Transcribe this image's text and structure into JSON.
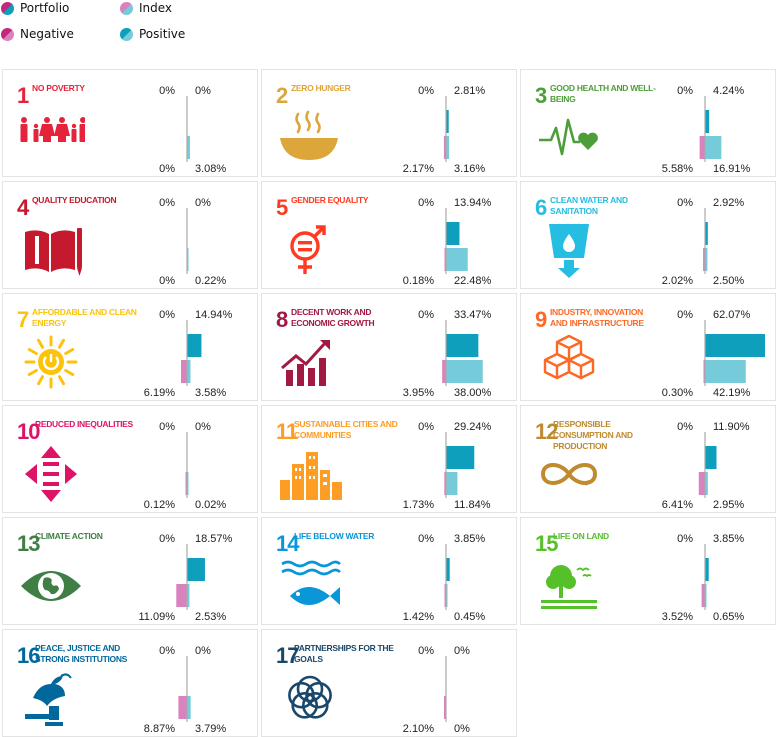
{
  "legend": {
    "portfolio": "Portfolio",
    "index": "Index",
    "negative": "Negative",
    "positive": "Positive"
  },
  "colors": {
    "portfolio_positive": "#0e9fbd",
    "index_positive": "#76cbdb",
    "portfolio_negative": "#c2297e",
    "index_negative": "#d982bd",
    "axis": "#aaaaaa"
  },
  "chart_data": {
    "type": "bar",
    "description_scale_max_percent": 62.07,
    "series": [
      {
        "name": "Portfolio"
      },
      {
        "name": "Index"
      }
    ],
    "goals": [
      {
        "num": "1",
        "title": "No poverty",
        "color": "#e5243b",
        "icon": "people-icon",
        "portfolio": {
          "negative": "0%",
          "positive": "0%",
          "neg": 0,
          "pos": 0
        },
        "index": {
          "negative": "0%",
          "positive": "3.08%",
          "neg": 0,
          "pos": 3.08
        }
      },
      {
        "num": "2",
        "title": "Zero hunger",
        "color": "#dda63a",
        "icon": "bowl-icon",
        "portfolio": {
          "negative": "0%",
          "positive": "2.81%",
          "neg": 0,
          "pos": 2.81
        },
        "index": {
          "negative": "2.17%",
          "positive": "3.16%",
          "neg": 2.17,
          "pos": 3.16
        }
      },
      {
        "num": "3",
        "title": "Good health and well-being",
        "color": "#4c9f38",
        "icon": "heartbeat-icon",
        "portfolio": {
          "negative": "0%",
          "positive": "4.24%",
          "neg": 0,
          "pos": 4.24
        },
        "index": {
          "negative": "5.58%",
          "positive": "16.91%",
          "neg": 5.58,
          "pos": 16.91
        }
      },
      {
        "num": "4",
        "title": "Quality education",
        "color": "#c5192d",
        "icon": "book-icon",
        "portfolio": {
          "negative": "0%",
          "positive": "0%",
          "neg": 0,
          "pos": 0
        },
        "index": {
          "negative": "0%",
          "positive": "0.22%",
          "neg": 0,
          "pos": 0.22
        }
      },
      {
        "num": "5",
        "title": "Gender equality",
        "color": "#ff3a21",
        "icon": "gender-icon",
        "portfolio": {
          "negative": "0%",
          "positive": "13.94%",
          "neg": 0,
          "pos": 13.94
        },
        "index": {
          "negative": "0.18%",
          "positive": "22.48%",
          "neg": 0.18,
          "pos": 22.48
        }
      },
      {
        "num": "6",
        "title": "Clean water and sanitation",
        "color": "#26bde2",
        "icon": "water-glass-icon",
        "portfolio": {
          "negative": "0%",
          "positive": "2.92%",
          "neg": 0,
          "pos": 2.92
        },
        "index": {
          "negative": "2.02%",
          "positive": "2.50%",
          "neg": 2.02,
          "pos": 2.5
        }
      },
      {
        "num": "7",
        "title": "Affordable and clean energy",
        "color": "#fcc30b",
        "icon": "sun-power-icon",
        "portfolio": {
          "negative": "0%",
          "positive": "14.94%",
          "neg": 0,
          "pos": 14.94
        },
        "index": {
          "negative": "6.19%",
          "positive": "3.58%",
          "neg": 6.19,
          "pos": 3.58
        }
      },
      {
        "num": "8",
        "title": "Decent work and economic growth",
        "color": "#a21942",
        "icon": "growth-chart-icon",
        "portfolio": {
          "negative": "0%",
          "positive": "33.47%",
          "neg": 0,
          "pos": 33.47
        },
        "index": {
          "negative": "3.95%",
          "positive": "38.00%",
          "neg": 3.95,
          "pos": 38.0
        }
      },
      {
        "num": "9",
        "title": "Industry, innovation and infrastructure",
        "color": "#fd6925",
        "icon": "cubes-icon",
        "portfolio": {
          "negative": "0%",
          "positive": "62.07%",
          "neg": 0,
          "pos": 62.07
        },
        "index": {
          "negative": "0.30%",
          "positive": "42.19%",
          "neg": 0.3,
          "pos": 42.19
        }
      },
      {
        "num": "10",
        "title": "Reduced inequalities",
        "color": "#dd1367",
        "icon": "equality-arrows-icon",
        "portfolio": {
          "negative": "0%",
          "positive": "0%",
          "neg": 0,
          "pos": 0
        },
        "index": {
          "negative": "0.12%",
          "positive": "0.02%",
          "neg": 0.12,
          "pos": 0.02
        }
      },
      {
        "num": "11",
        "title": "Sustainable cities and communities",
        "color": "#fd9d24",
        "icon": "city-icon",
        "portfolio": {
          "negative": "0%",
          "positive": "29.24%",
          "neg": 0,
          "pos": 29.24
        },
        "index": {
          "negative": "1.73%",
          "positive": "11.84%",
          "neg": 1.73,
          "pos": 11.84
        }
      },
      {
        "num": "12",
        "title": "Responsible consumption and production",
        "color": "#bf8b2e",
        "icon": "infinity-icon",
        "portfolio": {
          "negative": "0%",
          "positive": "11.90%",
          "neg": 0,
          "pos": 11.9
        },
        "index": {
          "negative": "6.41%",
          "positive": "2.95%",
          "neg": 6.41,
          "pos": 2.95
        }
      },
      {
        "num": "13",
        "title": "Climate action",
        "color": "#3f7e44",
        "icon": "eye-globe-icon",
        "portfolio": {
          "negative": "0%",
          "positive": "18.57%",
          "neg": 0,
          "pos": 18.57
        },
        "index": {
          "negative": "11.09%",
          "positive": "2.53%",
          "neg": 11.09,
          "pos": 2.53
        }
      },
      {
        "num": "14",
        "title": "Life below water",
        "color": "#0a97d9",
        "icon": "fish-icon",
        "portfolio": {
          "negative": "0%",
          "positive": "3.85%",
          "neg": 0,
          "pos": 3.85
        },
        "index": {
          "negative": "1.42%",
          "positive": "0.45%",
          "neg": 1.42,
          "pos": 0.45
        }
      },
      {
        "num": "15",
        "title": "Life on land",
        "color": "#56c02b",
        "icon": "tree-icon",
        "portfolio": {
          "negative": "0%",
          "positive": "3.85%",
          "neg": 0,
          "pos": 3.85
        },
        "index": {
          "negative": "3.52%",
          "positive": "0.65%",
          "neg": 3.52,
          "pos": 0.65
        }
      },
      {
        "num": "16",
        "title": "Peace, justice and strong institutions",
        "color": "#00689d",
        "icon": "dove-gavel-icon",
        "portfolio": {
          "negative": "0%",
          "positive": "0%",
          "neg": 0,
          "pos": 0
        },
        "index": {
          "negative": "8.87%",
          "positive": "3.79%",
          "neg": 8.87,
          "pos": 3.79
        }
      },
      {
        "num": "17",
        "title": "Partnerships for the goals",
        "color": "#19486a",
        "icon": "rings-icon",
        "portfolio": {
          "negative": "0%",
          "positive": "0%",
          "neg": 0,
          "pos": 0
        },
        "index": {
          "negative": "2.10%",
          "positive": "0%",
          "neg": 2.1,
          "pos": 0
        }
      }
    ]
  }
}
